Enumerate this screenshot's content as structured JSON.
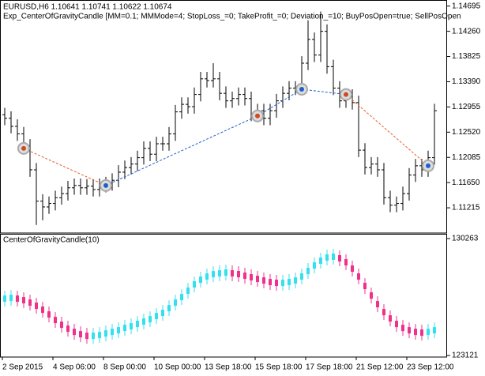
{
  "chart_data": [
    {
      "type": "ohlc",
      "title": "EURUSD,H6  1.10641 1.10741 1.10622 1.10674",
      "subtitle": "Exp_CenterOfGravityCandle [MM=0.1; MMMode=4; StopLoss_=0; TakeProfit_=0; Deviation_=10; BuyPosOpen=true; SellPosOpen",
      "color": "#000000",
      "ylim": [
        1.1078,
        1.148
      ],
      "yticks": [
        {
          "value": 1.14695,
          "label": "1.14695"
        },
        {
          "value": 1.1426,
          "label": "1.14260"
        },
        {
          "value": 1.13825,
          "label": "1.13825"
        },
        {
          "value": 1.1339,
          "label": "1.13390"
        },
        {
          "value": 1.12955,
          "label": "1.12955"
        },
        {
          "value": 1.1252,
          "label": "1.12520"
        },
        {
          "value": 1.12085,
          "label": "1.12085"
        },
        {
          "value": 1.1165,
          "label": "1.11650"
        },
        {
          "value": 1.11215,
          "label": "1.11215"
        }
      ],
      "x_labels": [
        {
          "index": 0,
          "label": "2 Sep 2015"
        },
        {
          "index": 8,
          "label": "4 Sep 06:00"
        },
        {
          "index": 16,
          "label": "8 Sep 00:00"
        },
        {
          "index": 24,
          "label": "10 Sep 00:00"
        },
        {
          "index": 32,
          "label": "13 Sep 18:00"
        },
        {
          "index": 40,
          "label": "15 Sep 18:00"
        },
        {
          "index": 48,
          "label": "17 Sep 18:00"
        },
        {
          "index": 56,
          "label": "21 Sep 12:00"
        },
        {
          "index": 64,
          "label": "23 Sep 12:00"
        }
      ],
      "open": [
        1.1282,
        1.1276,
        1.1262,
        1.1249,
        1.1228,
        1.1187,
        1.1133,
        1.1123,
        1.1129,
        1.1139,
        1.1146,
        1.1156,
        1.116,
        1.1156,
        1.1159,
        1.1153,
        1.116,
        1.1163,
        1.1169,
        1.1183,
        1.1191,
        1.1197,
        1.1208,
        1.1224,
        1.1214,
        1.1232,
        1.1232,
        1.1249,
        1.1287,
        1.13,
        1.1296,
        1.1317,
        1.1344,
        1.1341,
        1.1344,
        1.1319,
        1.1306,
        1.131,
        1.1317,
        1.131,
        1.1283,
        1.1289,
        1.1276,
        1.1289,
        1.1306,
        1.1319,
        1.1328,
        1.1328,
        1.1371,
        1.1412,
        1.1385,
        1.1426,
        1.1365,
        1.1328,
        1.1306,
        1.1314,
        1.1303,
        1.1221,
        1.1191,
        1.1197,
        1.1187,
        1.1139,
        1.1126,
        1.1129,
        1.1146,
        1.1178,
        1.1194,
        1.1187,
        1.1208
      ],
      "high": [
        1.1294,
        1.1288,
        1.1274,
        1.1261,
        1.124,
        1.1199,
        1.1145,
        1.1141,
        1.1151,
        1.1158,
        1.1168,
        1.1172,
        1.1172,
        1.1171,
        1.1171,
        1.1172,
        1.1175,
        1.1181,
        1.1195,
        1.1203,
        1.1209,
        1.122,
        1.1236,
        1.1236,
        1.1244,
        1.1244,
        1.1261,
        1.1299,
        1.1312,
        1.1312,
        1.1329,
        1.1356,
        1.1356,
        1.1371,
        1.1356,
        1.1331,
        1.1322,
        1.1329,
        1.1329,
        1.1322,
        1.1301,
        1.1301,
        1.1301,
        1.1318,
        1.1331,
        1.134,
        1.134,
        1.1383,
        1.1445,
        1.1424,
        1.146,
        1.1438,
        1.1377,
        1.134,
        1.1326,
        1.1326,
        1.1315,
        1.1233,
        1.1209,
        1.1209,
        1.1199,
        1.1151,
        1.1141,
        1.1158,
        1.119,
        1.1206,
        1.1206,
        1.122,
        1.1301
      ],
      "low": [
        1.1264,
        1.125,
        1.1237,
        1.1216,
        1.1175,
        1.1092,
        1.11,
        1.1111,
        1.1117,
        1.1127,
        1.1134,
        1.1144,
        1.1144,
        1.1144,
        1.1141,
        1.1141,
        1.1148,
        1.1151,
        1.1157,
        1.1171,
        1.1179,
        1.1185,
        1.1196,
        1.1202,
        1.1202,
        1.122,
        1.122,
        1.1237,
        1.1275,
        1.1284,
        1.1284,
        1.1305,
        1.1329,
        1.1329,
        1.1307,
        1.1294,
        1.1294,
        1.1298,
        1.1298,
        1.1271,
        1.1271,
        1.1264,
        1.1264,
        1.1277,
        1.1294,
        1.1307,
        1.1316,
        1.1316,
        1.1359,
        1.1373,
        1.1373,
        1.1353,
        1.1316,
        1.1294,
        1.1294,
        1.1291,
        1.1209,
        1.1179,
        1.1179,
        1.1175,
        1.1127,
        1.1114,
        1.1114,
        1.1117,
        1.1134,
        1.1166,
        1.1175,
        1.1175,
        1.1196
      ],
      "close": [
        1.1276,
        1.1262,
        1.1249,
        1.1228,
        1.1187,
        1.1133,
        1.1123,
        1.1129,
        1.1139,
        1.1146,
        1.1156,
        1.116,
        1.1156,
        1.1159,
        1.1153,
        1.116,
        1.1163,
        1.1169,
        1.1183,
        1.1191,
        1.1197,
        1.1208,
        1.1224,
        1.1214,
        1.1232,
        1.1232,
        1.1249,
        1.1287,
        1.13,
        1.1296,
        1.1317,
        1.1344,
        1.1341,
        1.1344,
        1.1319,
        1.1306,
        1.131,
        1.1317,
        1.131,
        1.1283,
        1.1289,
        1.1276,
        1.1289,
        1.1306,
        1.1319,
        1.1328,
        1.1328,
        1.1371,
        1.1412,
        1.1385,
        1.1426,
        1.1365,
        1.1328,
        1.1306,
        1.1314,
        1.1303,
        1.1221,
        1.1191,
        1.1197,
        1.1187,
        1.1139,
        1.1126,
        1.1129,
        1.1146,
        1.1178,
        1.1194,
        1.1187,
        1.1208,
        1.1289
      ],
      "deals": [
        {
          "index": 3,
          "price": 1.1224,
          "color": "#d04a1f"
        },
        {
          "index": 16,
          "price": 1.116,
          "color": "#1e5fcc"
        },
        {
          "index": 40,
          "price": 1.128,
          "color": "#d04a1f"
        },
        {
          "index": 47,
          "price": 1.1326,
          "color": "#1e5fcc"
        },
        {
          "index": 54,
          "price": 1.1317,
          "color": "#d04a1f"
        },
        {
          "index": 67,
          "price": 1.1194,
          "color": "#1e5fcc"
        }
      ],
      "line_colors": [
        "#e0602a",
        "#1e5fcc",
        "#1e5fcc",
        "#1e5fcc",
        "#e0602a"
      ]
    },
    {
      "type": "candlestick",
      "title": "CenterOfGravityCandle(10)",
      "up_color": "#33e0f0",
      "down_color": "#f0308a",
      "ylim": [
        123025,
        130504
      ],
      "yticks": [
        130263,
        123121
      ],
      "values": [
        126592,
        126640,
        126592,
        126495,
        126350,
        126157,
        125915,
        125626,
        125288,
        124998,
        124756,
        124563,
        124418,
        124322,
        124322,
        124370,
        124466,
        124563,
        124660,
        124805,
        124901,
        125046,
        125191,
        125336,
        125529,
        125722,
        126012,
        126350,
        126688,
        127075,
        127461,
        127751,
        127944,
        128089,
        128137,
        128186,
        128137,
        128089,
        127992,
        127896,
        127799,
        127703,
        127606,
        127558,
        127558,
        127606,
        127703,
        127944,
        128282,
        128620,
        128910,
        129103,
        129152,
        129055,
        128813,
        128427,
        127944,
        127364,
        126785,
        126254,
        125771,
        125384,
        125046,
        124805,
        124660,
        124563,
        124515,
        124563,
        124660
      ]
    }
  ]
}
